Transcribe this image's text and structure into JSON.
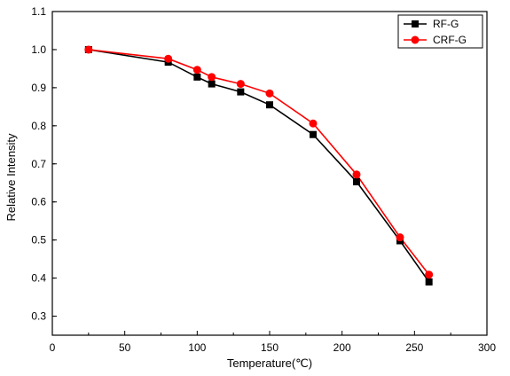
{
  "chart_data": {
    "type": "line",
    "title": "",
    "xlabel": "Temperature(℃)",
    "ylabel": "Relative Intensity",
    "xlim": [
      0,
      300
    ],
    "ylim": [
      0.25,
      1.1
    ],
    "xticks": [
      0,
      50,
      100,
      150,
      200,
      250,
      300
    ],
    "yticks": [
      0.3,
      0.4,
      0.5,
      0.6,
      0.7,
      0.8,
      0.9,
      1.0,
      1.1
    ],
    "xtick_labels": [
      "0",
      "50",
      "100",
      "150",
      "200",
      "250",
      "300"
    ],
    "ytick_labels": [
      "0.3",
      "0.4",
      "0.5",
      "0.6",
      "0.7",
      "0.8",
      "0.9",
      "1.0",
      "1.1"
    ],
    "grid": false,
    "legend_position": "top-right",
    "series": [
      {
        "name": "RF-G",
        "color": "#000000",
        "marker": "square",
        "x": [
          25,
          80,
          100,
          110,
          130,
          150,
          180,
          210,
          240,
          260
        ],
        "y": [
          1.0,
          0.967,
          0.928,
          0.91,
          0.889,
          0.855,
          0.777,
          0.653,
          0.498,
          0.39
        ]
      },
      {
        "name": "CRF-G",
        "color": "#ff0000",
        "marker": "circle",
        "x": [
          25,
          80,
          100,
          110,
          130,
          150,
          180,
          210,
          240,
          260
        ],
        "y": [
          1.0,
          0.976,
          0.947,
          0.928,
          0.91,
          0.885,
          0.806,
          0.672,
          0.507,
          0.409
        ]
      }
    ]
  }
}
